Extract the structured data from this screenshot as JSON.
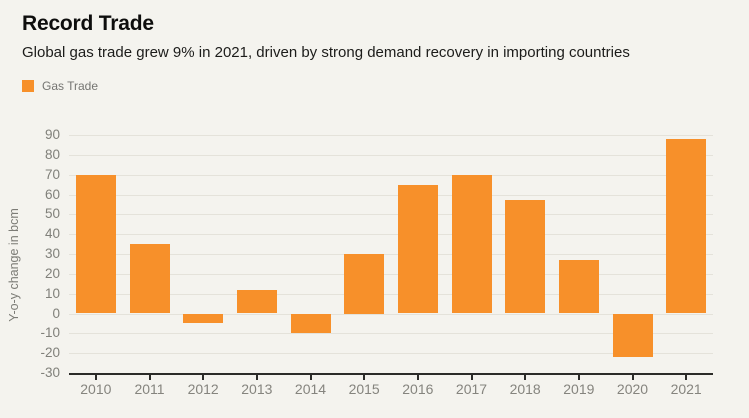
{
  "page": {
    "background_color": "#f4f3ee"
  },
  "header": {
    "title": "Record Trade",
    "subtitle": "Global gas trade grew 9% in 2021, driven by strong demand recovery in importing countries"
  },
  "legend": {
    "label": "Gas Trade",
    "swatch_color": "#f7902a"
  },
  "chart_data": {
    "type": "bar",
    "title": "Record Trade",
    "subtitle": "Global gas trade grew 9% in 2021, driven by strong demand recovery in importing countries",
    "categories": [
      "2010",
      "2011",
      "2012",
      "2013",
      "2014",
      "2015",
      "2016",
      "2017",
      "2018",
      "2019",
      "2020",
      "2021"
    ],
    "series": [
      {
        "name": "Gas Trade",
        "color": "#f7902a",
        "values": [
          70,
          35,
          -5,
          12,
          -10,
          30,
          65,
          70,
          57,
          27,
          -22,
          88
        ]
      }
    ],
    "xlabel": "",
    "ylabel": "Y-o-y change in bcm",
    "ylim": [
      -30,
      90
    ],
    "ytick_step": 10,
    "yticks": [
      -30,
      -20,
      -10,
      0,
      10,
      20,
      30,
      40,
      50,
      60,
      70,
      80,
      90
    ],
    "grid": true,
    "legend_position": "top-left",
    "colors": {
      "bar": "#f7902a",
      "background": "#f4f3ee",
      "gridline": "#e4e2da",
      "axis_line": "#2b2b28",
      "tick_text": "#85847e"
    }
  }
}
